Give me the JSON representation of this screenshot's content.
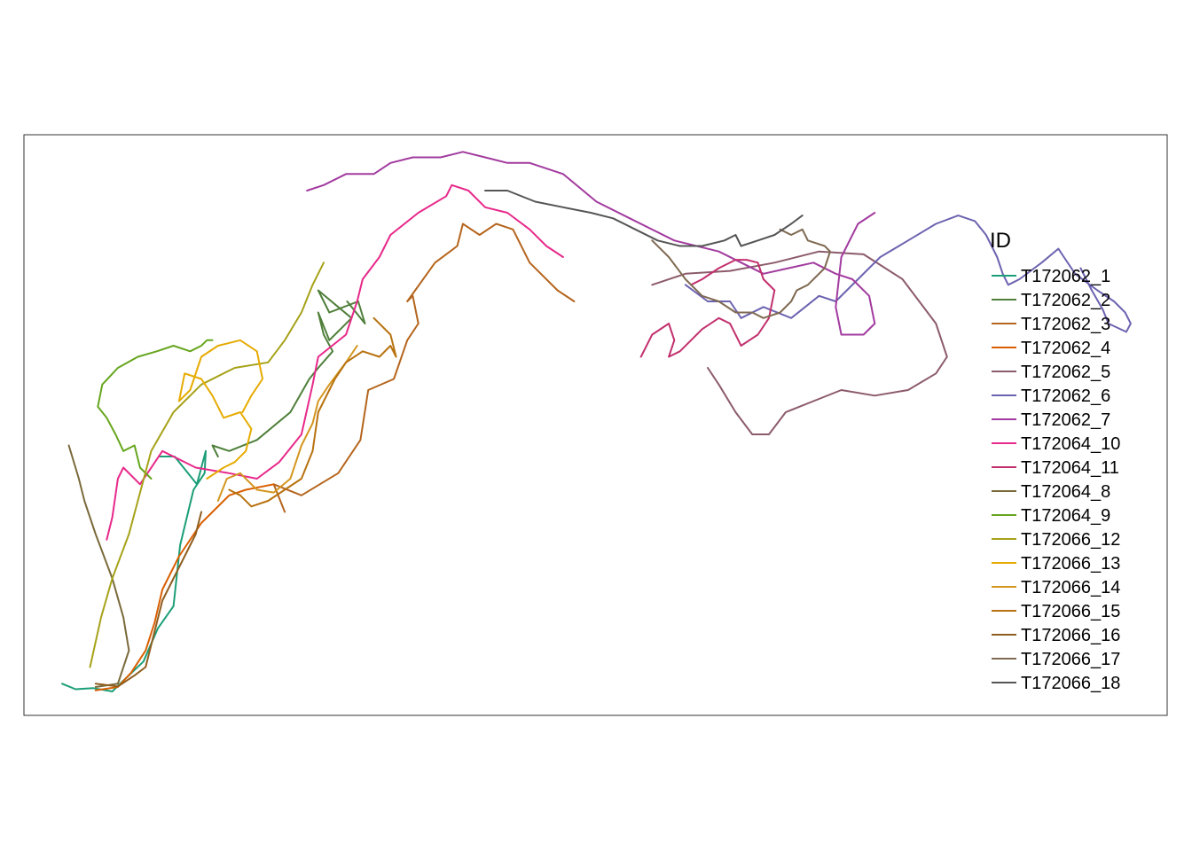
{
  "chart_data": {
    "type": "line",
    "title": "",
    "xlabel": "",
    "ylabel": "",
    "grid": false,
    "legend": {
      "title": "ID",
      "placement": "right"
    },
    "xlim": [
      0,
      100
    ],
    "ylim": [
      0,
      100
    ],
    "series": [
      {
        "name": "T172062_1",
        "color": "#1B9E77",
        "x": [
          2.0,
          3.2,
          4.8,
          6.5,
          7.2,
          9.3,
          10.6,
          12.0,
          12.6,
          13.8,
          14.8,
          14.9,
          14.1,
          12.1,
          10.7
        ],
        "y": [
          3.0,
          2.0,
          2.2,
          1.6,
          3.0,
          7.0,
          13.0,
          17.0,
          28.0,
          38.0,
          41.0,
          45.0,
          39.0,
          44.0,
          44.0
        ]
      },
      {
        "name": "T172062_2",
        "color": "#4F7F3A",
        "x": [
          16.0,
          15.5,
          17.0,
          19.5,
          22.5,
          24.2,
          25.0,
          26.3,
          25.5,
          25.0,
          26.0,
          27.0,
          28.0,
          26.8,
          25.0,
          26.0,
          28.6,
          29.2,
          27.6
        ],
        "y": [
          44.0,
          46.0,
          45.0,
          47.0,
          52.0,
          58.0,
          60.0,
          63.0,
          66.0,
          70.0,
          65.0,
          67.0,
          69.0,
          71.0,
          74.0,
          70.0,
          72.0,
          68.0,
          72.0
        ]
      },
      {
        "name": "T172062_3",
        "color": "#B5651D",
        "x": [
          22.0,
          21.0,
          23.5,
          26.8,
          28.8,
          29.5,
          31.8,
          33.0,
          34.0,
          33.5,
          33.0,
          35.5,
          37.5,
          38.0,
          39.5,
          41.0,
          42.5,
          44.0,
          46.5,
          48.0
        ],
        "y": [
          34.0,
          39.0,
          37.0,
          41.0,
          47.0,
          56.0,
          58.0,
          65.0,
          68.0,
          73.0,
          72.0,
          79.0,
          82.0,
          86.0,
          84.0,
          86.0,
          85.0,
          79.0,
          74.0,
          72.0
        ]
      },
      {
        "name": "T172062_4",
        "color": "#D95F02",
        "x": [
          5.0,
          7.0,
          8.2,
          9.5,
          10.3,
          11.0,
          12.5,
          14.5,
          17.0,
          18.5,
          21.0
        ],
        "y": [
          1.8,
          2.4,
          5.0,
          9.0,
          14.0,
          20.0,
          26.0,
          32.0,
          37.0,
          38.0,
          39.0
        ]
      },
      {
        "name": "T172062_5",
        "color": "#8C5B6A",
        "x": [
          55.0,
          58.0,
          62.0,
          66.0,
          70.0,
          74.0,
          77.5,
          80.5,
          81.5,
          80.5,
          78.0,
          75.0,
          72.0,
          69.5,
          67.0,
          65.5,
          64.0,
          62.5,
          61.0,
          60.0
        ],
        "y": [
          75.0,
          77.0,
          77.5,
          79.0,
          81.0,
          80.5,
          76.0,
          68.0,
          62.0,
          59.0,
          56.0,
          55.0,
          56.0,
          54.0,
          52.0,
          48.0,
          48.0,
          52.0,
          57.0,
          60.0
        ]
      },
      {
        "name": "T172062_6",
        "color": "#6C63B0",
        "x": [
          58.0,
          60.0,
          62.0,
          63.0,
          65.0,
          67.5,
          70.0,
          71.5,
          73.5,
          75.5,
          78.0,
          80.5,
          82.5,
          84.0,
          85.0,
          86.0,
          86.5,
          87.0,
          88.0,
          90.0,
          91.5,
          92.0,
          93.0,
          95.0,
          96.5,
          97.5,
          98.0,
          97.6,
          96.0,
          95.5,
          94.5,
          93.5
        ],
        "y": [
          75.0,
          72.0,
          72.0,
          69.0,
          71.0,
          69.0,
          73.0,
          72.0,
          76.0,
          80.0,
          83.0,
          86.0,
          87.5,
          86.5,
          84.0,
          80.0,
          77.0,
          75.0,
          76.0,
          79.0,
          81.5,
          80.0,
          77.0,
          74.0,
          72.0,
          70.0,
          68.0,
          66.5,
          68.0,
          70.5,
          74.0,
          78.0
        ]
      },
      {
        "name": "T172062_7",
        "color": "#A23B9F",
        "x": [
          24.0,
          25.5,
          27.5,
          30.0,
          31.5,
          33.5,
          36.0,
          38.0,
          40.0,
          42.0,
          44.0,
          47.0,
          50.0,
          53.0,
          57.0,
          61.0,
          65.0,
          69.5,
          71.5,
          73.0,
          74.5,
          75.0,
          74.0,
          72.0,
          71.5,
          72.0,
          73.5,
          75.0
        ],
        "y": [
          92.0,
          93.0,
          95.0,
          95.0,
          97.0,
          98.0,
          98.0,
          99.0,
          98.0,
          97.0,
          97.0,
          95.0,
          90.0,
          87.0,
          83.0,
          81.0,
          77.0,
          79.0,
          77.0,
          76.0,
          73.0,
          68.0,
          66.0,
          66.0,
          71.0,
          80.0,
          86.0,
          88.0
        ]
      },
      {
        "name": "T172064_10",
        "color": "#E7298A",
        "x": [
          6.0,
          6.5,
          7.0,
          7.5,
          9.0,
          11.0,
          14.0,
          17.0,
          19.5,
          21.5,
          23.5,
          24.5,
          25.0,
          27.5,
          28.5,
          29.0,
          30.5,
          31.5,
          34.0,
          36.5,
          37.0,
          38.5,
          40.0,
          42.0,
          44.0,
          45.5,
          47.0
        ],
        "y": [
          29.0,
          33.0,
          40.0,
          42.0,
          39.0,
          45.0,
          42.0,
          41.0,
          40.0,
          43.0,
          48.0,
          57.0,
          62.0,
          66.0,
          72.0,
          76.0,
          80.0,
          84.0,
          88.0,
          91.0,
          93.0,
          92.0,
          89.0,
          88.0,
          85.0,
          82.0,
          80.0
        ]
      },
      {
        "name": "T172064_11",
        "color": "#C2306E",
        "x": [
          54.0,
          55.0,
          56.5,
          57.0,
          56.5,
          57.5,
          58.5,
          59.5,
          61.0,
          62.0,
          63.0,
          64.5,
          65.5,
          66.0,
          65.0,
          64.5,
          63.5,
          62.5,
          61.0,
          59.5,
          58.5
        ],
        "y": [
          62.0,
          66.0,
          68.0,
          65.0,
          62.0,
          63.0,
          65.0,
          67.0,
          69.0,
          68.0,
          64.0,
          66.0,
          69.0,
          74.0,
          76.0,
          79.0,
          79.5,
          79.5,
          78.0,
          76.0,
          75.0
        ]
      },
      {
        "name": "T172064_8",
        "color": "#7A6A3A",
        "x": [
          5.0,
          7.0,
          8.0,
          7.5,
          6.5,
          5.0,
          4.0,
          3.5,
          2.6
        ],
        "y": [
          2.4,
          3.0,
          9.0,
          15.0,
          22.0,
          30.0,
          36.0,
          40.0,
          46.0
        ]
      },
      {
        "name": "T172064_9",
        "color": "#66A61E",
        "x": [
          10.0,
          9.0,
          8.5,
          7.5,
          6.8,
          6.0,
          5.2,
          5.6,
          7.0,
          8.8,
          10.5,
          12.0,
          13.5,
          14.5,
          15.0,
          15.5
        ],
        "y": [
          40.0,
          42.0,
          46.0,
          45.0,
          48.0,
          51.0,
          53.0,
          57.0,
          60.0,
          62.0,
          63.0,
          64.0,
          63.0,
          64.0,
          65.0,
          65.0
        ]
      },
      {
        "name": "T172066_12",
        "color": "#A6A219",
        "x": [
          4.5,
          5.5,
          6.5,
          8.0,
          10.0,
          12.0,
          14.5,
          17.5,
          20.5,
          22.0,
          23.5,
          24.5,
          25.5
        ],
        "y": [
          6.0,
          15.0,
          22.0,
          30.0,
          45.0,
          52.0,
          57.0,
          60.0,
          61.0,
          65.0,
          70.0,
          75.0,
          79.0
        ]
      },
      {
        "name": "T172066_13",
        "color": "#E6AB02",
        "x": [
          15.0,
          16.5,
          17.5,
          18.5,
          19.0,
          18.0,
          16.5,
          15.5,
          14.5,
          13.0,
          12.5,
          13.5,
          14.5,
          16.0,
          18.0,
          19.5,
          20.0,
          19.0,
          18.2
        ],
        "y": [
          40.0,
          42.0,
          43.0,
          45.0,
          49.0,
          52.0,
          51.0,
          55.0,
          58.0,
          59.0,
          54.0,
          56.0,
          62.0,
          64.0,
          65.0,
          63.0,
          58.0,
          55.0,
          52.0
        ]
      },
      {
        "name": "T172066_14",
        "color": "#D4961F",
        "x": [
          16.0,
          16.8,
          18.0,
          19.5,
          21.0,
          22.5,
          23.5,
          24.5,
          25.0,
          26.0,
          27.5,
          28.5
        ],
        "y": [
          36.0,
          40.0,
          41.0,
          38.0,
          37.5,
          40.0,
          46.0,
          50.0,
          54.0,
          57.0,
          61.0,
          64.0
        ]
      },
      {
        "name": "T172066_15",
        "color": "#B8720F",
        "x": [
          17.0,
          18.0,
          19.0,
          20.5,
          22.0,
          23.5,
          24.5,
          25.0,
          26.5,
          27.5,
          29.0,
          30.5,
          31.5,
          32.0,
          31.5,
          30.0
        ],
        "y": [
          38.0,
          37.0,
          35.0,
          36.0,
          38.0,
          40.0,
          45.0,
          52.0,
          58.0,
          61.0,
          63.0,
          62.0,
          64.0,
          62.0,
          66.0,
          69.0
        ]
      },
      {
        "name": "T172066_16",
        "color": "#8F5E1F",
        "x": [
          5.0,
          7.0,
          8.5,
          9.5,
          10.0,
          10.5,
          11.0,
          12.0,
          13.0,
          14.0,
          14.5
        ],
        "y": [
          3.0,
          2.5,
          4.5,
          6.0,
          10.0,
          14.0,
          18.0,
          22.0,
          26.0,
          30.0,
          34.0
        ]
      },
      {
        "name": "T172066_17",
        "color": "#7F6A52",
        "x": [
          55.0,
          56.5,
          58.0,
          59.5,
          61.0,
          62.5,
          64.0,
          65.0,
          66.5,
          67.5,
          68.0,
          69.0,
          70.5,
          71.0,
          70.5,
          69.0,
          68.5,
          67.5,
          66.5
        ],
        "y": [
          83.0,
          80.0,
          76.0,
          73.0,
          72.0,
          70.0,
          70.0,
          69.0,
          70.0,
          72.0,
          74.0,
          75.0,
          78.0,
          81.0,
          82.0,
          83.0,
          85.0,
          84.0,
          85.0
        ]
      },
      {
        "name": "T172066_18",
        "color": "#555555",
        "x": [
          40.0,
          42.0,
          44.5,
          47.0,
          49.5,
          51.5,
          53.5,
          55.5,
          57.5,
          59.5,
          61.5,
          62.5,
          63.0,
          64.5,
          66.0,
          67.5,
          68.5
        ],
        "y": [
          92.0,
          92.0,
          90.0,
          89.0,
          88.0,
          87.0,
          85.0,
          83.0,
          82.0,
          82.0,
          83.0,
          84.0,
          82.0,
          83.0,
          84.0,
          86.0,
          87.5
        ]
      }
    ]
  }
}
